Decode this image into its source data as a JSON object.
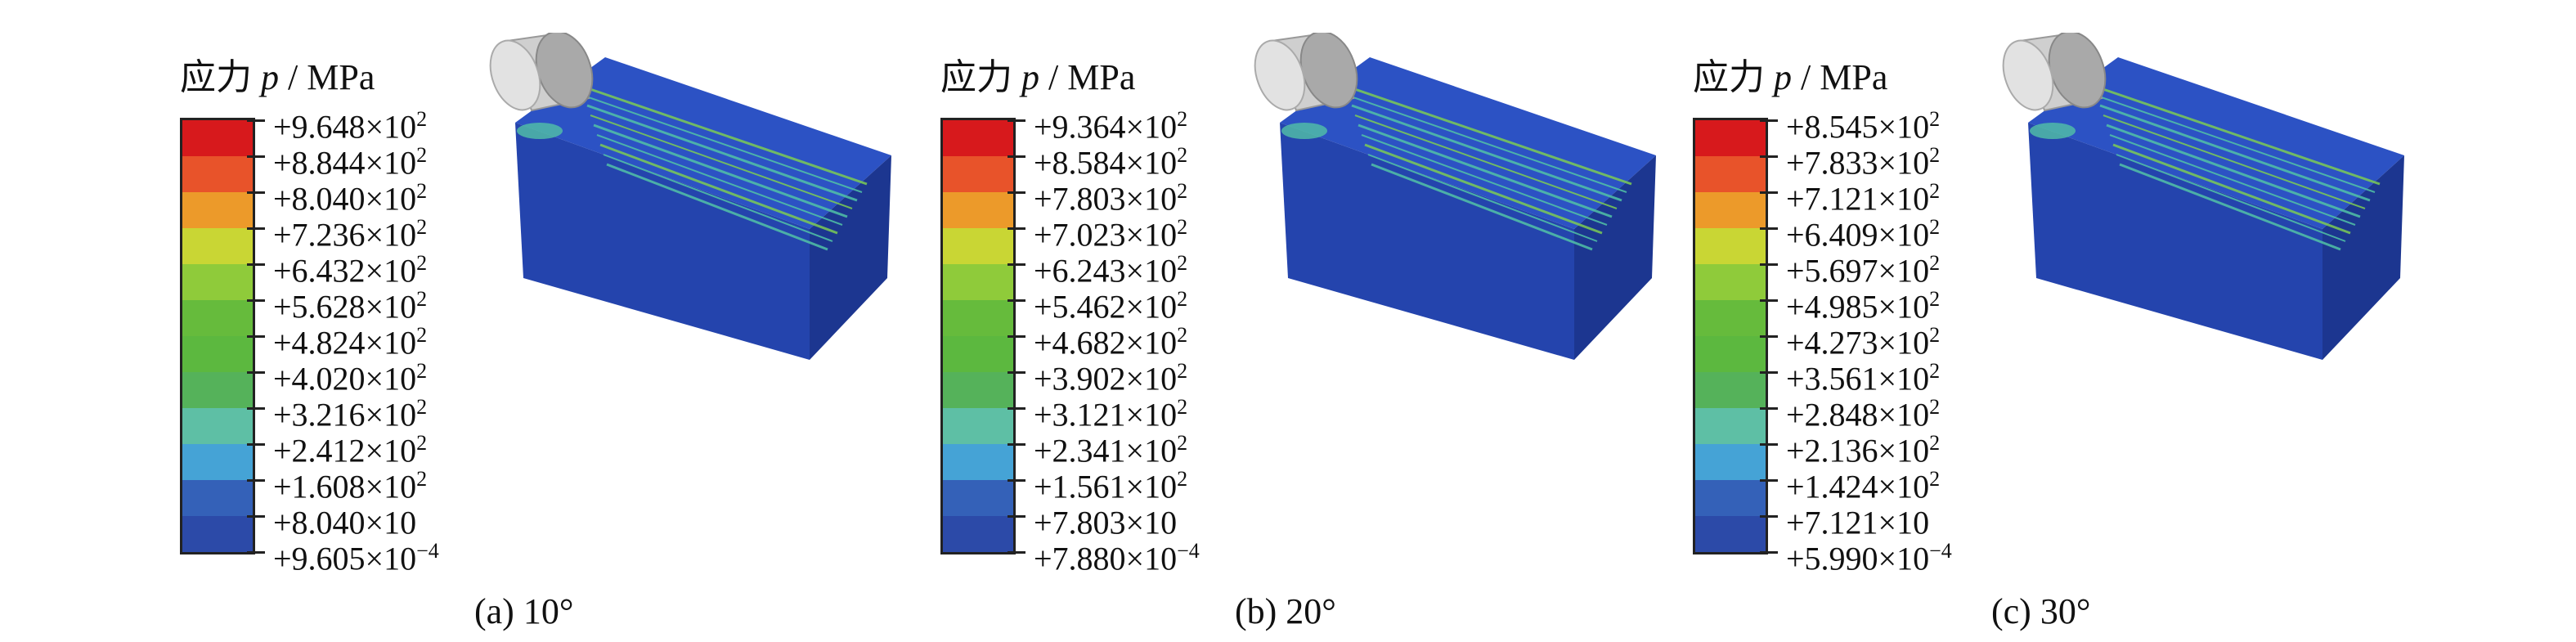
{
  "panels": [
    {
      "id": "a",
      "legend_title_prefix": "应力 ",
      "legend_title_symbol": "p",
      "legend_title_unit": " / MPa",
      "legend_values": [
        [
          "+9.648×10",
          "2"
        ],
        [
          "+8.844×10",
          "2"
        ],
        [
          "+8.040×10",
          "2"
        ],
        [
          "+7.236×10",
          "2"
        ],
        [
          "+6.432×10",
          "2"
        ],
        [
          "+5.628×10",
          "2"
        ],
        [
          "+4.824×10",
          "2"
        ],
        [
          "+4.020×10",
          "2"
        ],
        [
          "+3.216×10",
          "2"
        ],
        [
          "+2.412×10",
          "2"
        ],
        [
          "+1.608×10",
          "2"
        ],
        [
          "+8.040×10",
          ""
        ],
        [
          "+9.605×10",
          "−4"
        ]
      ],
      "caption": "(a) 10°"
    },
    {
      "id": "b",
      "legend_title_prefix": "应力 ",
      "legend_title_symbol": "p",
      "legend_title_unit": " / MPa",
      "legend_values": [
        [
          "+9.364×10",
          "2"
        ],
        [
          "+8.584×10",
          "2"
        ],
        [
          "+7.803×10",
          "2"
        ],
        [
          "+7.023×10",
          "2"
        ],
        [
          "+6.243×10",
          "2"
        ],
        [
          "+5.462×10",
          "2"
        ],
        [
          "+4.682×10",
          "2"
        ],
        [
          "+3.902×10",
          "2"
        ],
        [
          "+3.121×10",
          "2"
        ],
        [
          "+2.341×10",
          "2"
        ],
        [
          "+1.561×10",
          "2"
        ],
        [
          "+7.803×10",
          ""
        ],
        [
          "+7.880×10",
          "−4"
        ]
      ],
      "caption": "(b) 20°"
    },
    {
      "id": "c",
      "legend_title_prefix": "应力 ",
      "legend_title_symbol": "p",
      "legend_title_unit": " / MPa",
      "legend_values": [
        [
          "+8.545×10",
          "2"
        ],
        [
          "+7.833×10",
          "2"
        ],
        [
          "+7.121×10",
          "2"
        ],
        [
          "+6.409×10",
          "2"
        ],
        [
          "+5.697×10",
          "2"
        ],
        [
          "+4.985×10",
          "2"
        ],
        [
          "+4.273×10",
          "2"
        ],
        [
          "+3.561×10",
          "2"
        ],
        [
          "+2.848×10",
          "2"
        ],
        [
          "+2.136×10",
          "2"
        ],
        [
          "+1.424×10",
          "2"
        ],
        [
          "+7.121×10",
          ""
        ],
        [
          "+5.990×10",
          "−4"
        ]
      ],
      "caption": "(c) 30°"
    }
  ],
  "legend_colors": [
    "#d7191c",
    "#e8532a",
    "#ec9a2a",
    "#c9d634",
    "#8fcb3a",
    "#66bb3c",
    "#5cb83f",
    "#55b25a",
    "#5ebfa5",
    "#45a3d6",
    "#3461b8",
    "#2c4aa8",
    "#203c96"
  ],
  "block_colors": {
    "top": "#2c52c4",
    "front": "#2444ad",
    "side": "#1c3690",
    "hot": "#52c2a6",
    "warm": "#7ccc55",
    "tool": "#cfcfcf",
    "tool_face": "#a9a9a9"
  }
}
